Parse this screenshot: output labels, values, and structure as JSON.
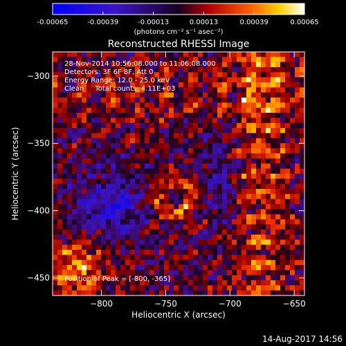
{
  "chart_data": {
    "type": "heatmap",
    "title": "Reconstructed RHESSI Image",
    "xlabel": "Heliocentric X (arcsec)",
    "ylabel": "Heliocentric Y (arcsec)",
    "xlim": [
      -838,
      -642
    ],
    "ylim": [
      -463,
      -282
    ],
    "x_ticks": [
      -800,
      -750,
      -700,
      -650
    ],
    "y_ticks": [
      -300,
      -350,
      -400,
      -450
    ],
    "annotations": [
      "28-Nov-2014 10:56:08.000 to 11:06:08.000",
      "Detectors: 3F 6F 8F, Att 0",
      "Energy Range: 12.0 - 25.0 keV",
      "Clean     Total counts: 4.11E+03"
    ],
    "peak_label": "Position of Peak = [-800, -365]",
    "colorbar": {
      "ticks": [
        "-0.00065",
        "-0.00039",
        "-0.00013",
        "0.00013",
        "0.00039",
        "0.00065"
      ],
      "units_label": "(photons cm⁻² s⁻¹ asec⁻²)",
      "range": [
        -0.00065,
        0.00065
      ]
    },
    "grid_cells": [
      52,
      48
    ]
  },
  "footer": {
    "timestamp": "14-Aug-2017 14:56"
  }
}
